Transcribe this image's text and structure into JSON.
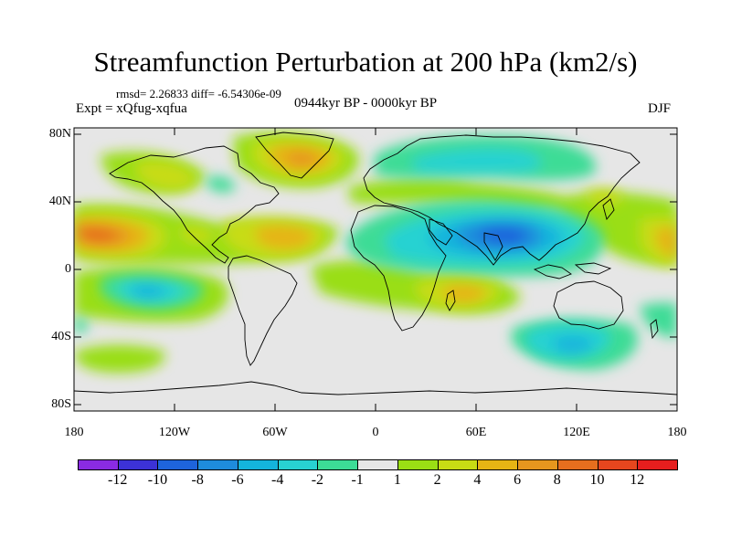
{
  "header": {
    "title": "Streamfunction Perturbation at 200 hPa (km2/s)",
    "stats": "rmsd= 2.26833 diff= -6.54306e-09",
    "expt": "Expt = xQfug-xqfua",
    "period": "0944kyr BP - 0000kyr BP",
    "season": "DJF"
  },
  "axes": {
    "lat_labels": [
      "80N",
      "40N",
      "0",
      "40S",
      "80S"
    ],
    "lon_labels": [
      "180",
      "120W",
      "60W",
      "0",
      "60E",
      "120E",
      "180"
    ]
  },
  "colorbar": {
    "labels": [
      "-12",
      "-10",
      "-8",
      "-6",
      "-4",
      "-2",
      "-1",
      "1",
      "2",
      "4",
      "6",
      "8",
      "10",
      "12"
    ],
    "colors": [
      "#8a2be2",
      "#3c32d6",
      "#1e64dc",
      "#1e8cdc",
      "#14b4dc",
      "#28d2d2",
      "#3cdc96",
      "#e6e6e6",
      "#9ade14",
      "#c8dc14",
      "#e6b414",
      "#e6961e",
      "#e66e1e",
      "#e6461e",
      "#e61e1e"
    ]
  },
  "regions": [
    {
      "name": "n-atlantic-greenland-positive",
      "lon": -32,
      "lat": 67,
      "value": 6
    },
    {
      "name": "eurasia-arctic-negative",
      "lon": 50,
      "lat": 65,
      "value": -3
    },
    {
      "name": "n-pacific-subtropical-positive",
      "lon": -155,
      "lat": 20,
      "value": 8
    },
    {
      "name": "n-atlantic-subtropical-positive",
      "lon": -40,
      "lat": 18,
      "value": 5
    },
    {
      "name": "south-asia-negative-center",
      "lon": 80,
      "lat": 18,
      "value": -9
    },
    {
      "name": "s-pacific-negative",
      "lon": -140,
      "lat": -15,
      "value": -5
    },
    {
      "name": "s-indian-ocean-positive",
      "lon": 50,
      "lat": -15,
      "value": 4
    },
    {
      "name": "s-indian-ocean-negative",
      "lon": 105,
      "lat": -42,
      "value": -5
    }
  ]
}
